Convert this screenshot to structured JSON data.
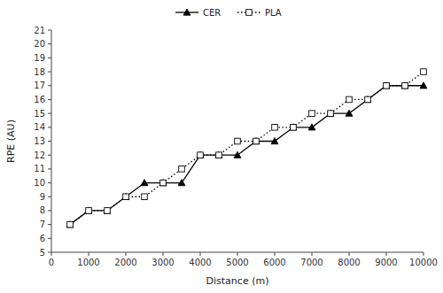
{
  "chart_data": {
    "type": "line",
    "x_label": "Distance (m)",
    "y_label": "RPE (AU)",
    "x": [
      500,
      1000,
      1500,
      2000,
      2500,
      3000,
      3500,
      4000,
      4500,
      5000,
      5500,
      6000,
      6500,
      7000,
      7500,
      8000,
      8500,
      9000,
      9500,
      10000
    ],
    "series": [
      {
        "name": "CER",
        "color": "#000000",
        "marker": "triangle",
        "line_style": "solid",
        "values": [
          7,
          8,
          8,
          9,
          10,
          10,
          10,
          12,
          12,
          12,
          13,
          13,
          14,
          14,
          15,
          15,
          16,
          17,
          17,
          17
        ]
      },
      {
        "name": "PLA",
        "color": "#000000",
        "marker": "open-square",
        "line_style": "dotted",
        "values": [
          7,
          8,
          8,
          9,
          9,
          10,
          11,
          12,
          12,
          13,
          13,
          14,
          14,
          15,
          15,
          16,
          16,
          17,
          17,
          18
        ]
      }
    ],
    "xlim": [
      0,
      10000
    ],
    "ylim": [
      5,
      21
    ],
    "xticks": [
      0,
      1000,
      2000,
      3000,
      4000,
      5000,
      6000,
      7000,
      8000,
      9000,
      10000
    ],
    "yticks": [
      5,
      6,
      7,
      8,
      9,
      10,
      11,
      12,
      13,
      14,
      15,
      16,
      17,
      18,
      19,
      20,
      21
    ],
    "grid": false,
    "legend": "top"
  }
}
